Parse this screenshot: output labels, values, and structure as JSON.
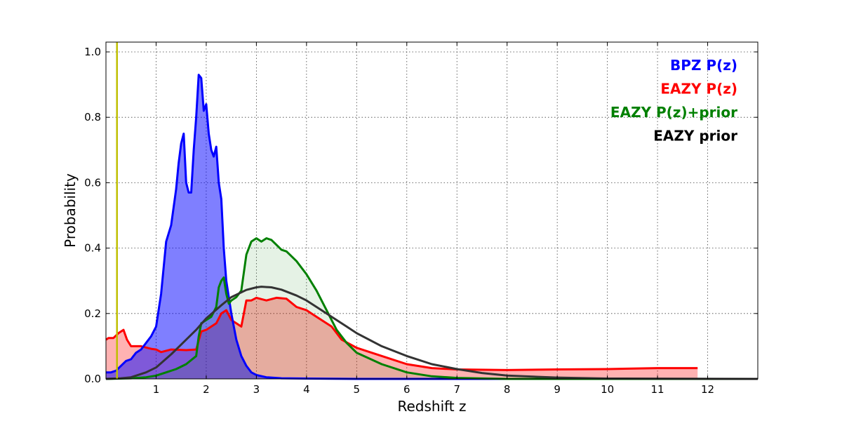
{
  "chart_data": {
    "type": "area",
    "title": "",
    "xlabel": "Redshift z",
    "ylabel": "Probability",
    "xlim": [
      0,
      13
    ],
    "ylim": [
      0,
      1.03
    ],
    "xticks": [
      1,
      2,
      3,
      4,
      5,
      6,
      7,
      8,
      9,
      10,
      11,
      12
    ],
    "yticks": [
      0.0,
      0.2,
      0.4,
      0.6,
      0.8,
      1.0
    ],
    "ytick_labels": [
      "0.0",
      "0.2",
      "0.4",
      "0.6",
      "0.8",
      "1.0"
    ],
    "grid": true,
    "legend_position": "top-right",
    "reference_line": {
      "x": 0.22,
      "color": "#bfbf00"
    },
    "series": [
      {
        "name": "EAZY P(z)",
        "color": "#ff0000",
        "fill_color": "#ff0000",
        "fill_opacity": 0.3,
        "x": [
          0,
          0.05,
          0.15,
          0.25,
          0.35,
          0.42,
          0.5,
          0.7,
          0.9,
          1.0,
          1.1,
          1.3,
          1.6,
          1.8,
          1.9,
          2.0,
          2.1,
          2.2,
          2.3,
          2.4,
          2.5,
          2.6,
          2.7,
          2.75,
          2.8,
          2.9,
          3.0,
          3.2,
          3.4,
          3.6,
          3.8,
          4.0,
          4.2,
          4.5,
          4.7,
          5.0,
          5.3,
          5.6,
          6.0,
          6.5,
          7.0,
          8.0,
          9.0,
          10.0,
          11.0,
          11.8
        ],
        "y": [
          0.12,
          0.125,
          0.125,
          0.14,
          0.15,
          0.12,
          0.1,
          0.1,
          0.092,
          0.09,
          0.082,
          0.09,
          0.088,
          0.09,
          0.145,
          0.15,
          0.16,
          0.17,
          0.2,
          0.21,
          0.18,
          0.17,
          0.16,
          0.2,
          0.24,
          0.24,
          0.248,
          0.24,
          0.248,
          0.245,
          0.22,
          0.21,
          0.19,
          0.16,
          0.12,
          0.095,
          0.08,
          0.065,
          0.045,
          0.033,
          0.029,
          0.027,
          0.029,
          0.03,
          0.033,
          0.033
        ]
      },
      {
        "name": "BPZ P(z)",
        "color": "#0000ff",
        "fill_color": "#0000ff",
        "fill_opacity": 0.5,
        "x": [
          0,
          0.1,
          0.2,
          0.3,
          0.4,
          0.5,
          0.6,
          0.7,
          0.8,
          0.9,
          1.0,
          1.1,
          1.2,
          1.3,
          1.4,
          1.45,
          1.5,
          1.55,
          1.6,
          1.65,
          1.7,
          1.75,
          1.8,
          1.85,
          1.9,
          1.95,
          2.0,
          2.05,
          2.1,
          2.15,
          2.2,
          2.25,
          2.3,
          2.35,
          2.4,
          2.45,
          2.5,
          2.6,
          2.7,
          2.8,
          2.9,
          3.0,
          3.2,
          3.5,
          4.0,
          5.0,
          13.0
        ],
        "y": [
          0.02,
          0.02,
          0.025,
          0.04,
          0.055,
          0.06,
          0.08,
          0.09,
          0.11,
          0.13,
          0.16,
          0.26,
          0.42,
          0.47,
          0.58,
          0.66,
          0.72,
          0.75,
          0.6,
          0.57,
          0.57,
          0.7,
          0.8,
          0.93,
          0.92,
          0.82,
          0.84,
          0.75,
          0.7,
          0.68,
          0.71,
          0.6,
          0.55,
          0.4,
          0.3,
          0.25,
          0.2,
          0.12,
          0.07,
          0.04,
          0.02,
          0.012,
          0.005,
          0.002,
          0.001,
          0.0,
          0.0
        ]
      },
      {
        "name": "EAZY P(z)+prior",
        "color": "#008000",
        "fill_color": "#008000",
        "fill_opacity": 0.1,
        "x": [
          0,
          0.5,
          0.8,
          1.0,
          1.2,
          1.4,
          1.6,
          1.8,
          1.85,
          1.9,
          2.0,
          2.1,
          2.2,
          2.25,
          2.3,
          2.35,
          2.4,
          2.45,
          2.5,
          2.6,
          2.7,
          2.8,
          2.9,
          3.0,
          3.1,
          3.2,
          3.3,
          3.4,
          3.5,
          3.6,
          3.8,
          4.0,
          4.2,
          4.4,
          4.6,
          4.8,
          5.0,
          5.5,
          6.0,
          6.5,
          7.0,
          8.0,
          13.0
        ],
        "y": [
          0.0,
          0.002,
          0.005,
          0.01,
          0.02,
          0.03,
          0.045,
          0.07,
          0.13,
          0.17,
          0.18,
          0.19,
          0.22,
          0.28,
          0.3,
          0.31,
          0.26,
          0.23,
          0.24,
          0.25,
          0.27,
          0.38,
          0.42,
          0.43,
          0.42,
          0.43,
          0.425,
          0.41,
          0.395,
          0.39,
          0.36,
          0.32,
          0.27,
          0.21,
          0.15,
          0.11,
          0.08,
          0.045,
          0.02,
          0.008,
          0.003,
          0.0,
          0.0
        ]
      },
      {
        "name": "EAZY prior",
        "color": "#333333",
        "fill_color": "none",
        "fill_opacity": 0,
        "x": [
          0,
          0.3,
          0.5,
          0.8,
          1.0,
          1.3,
          1.5,
          1.8,
          2.0,
          2.3,
          2.5,
          2.8,
          3.0,
          3.1,
          3.3,
          3.5,
          3.8,
          4.0,
          4.3,
          4.5,
          4.8,
          5.0,
          5.5,
          6.0,
          6.5,
          7.0,
          7.5,
          8.0,
          9.0,
          10.0,
          13.0
        ],
        "y": [
          0.0,
          0.002,
          0.005,
          0.02,
          0.035,
          0.075,
          0.105,
          0.15,
          0.185,
          0.225,
          0.25,
          0.272,
          0.28,
          0.282,
          0.28,
          0.273,
          0.255,
          0.24,
          0.21,
          0.19,
          0.16,
          0.14,
          0.1,
          0.07,
          0.045,
          0.03,
          0.018,
          0.01,
          0.004,
          0.001,
          0.0
        ]
      }
    ],
    "legend": [
      {
        "label": "BPZ P(z)",
        "color": "#0000ff"
      },
      {
        "label": "EAZY P(z)",
        "color": "#ff0000"
      },
      {
        "label": "EAZY P(z)+prior",
        "color": "#008000"
      },
      {
        "label": "EAZY prior",
        "color": "#000000"
      }
    ]
  }
}
